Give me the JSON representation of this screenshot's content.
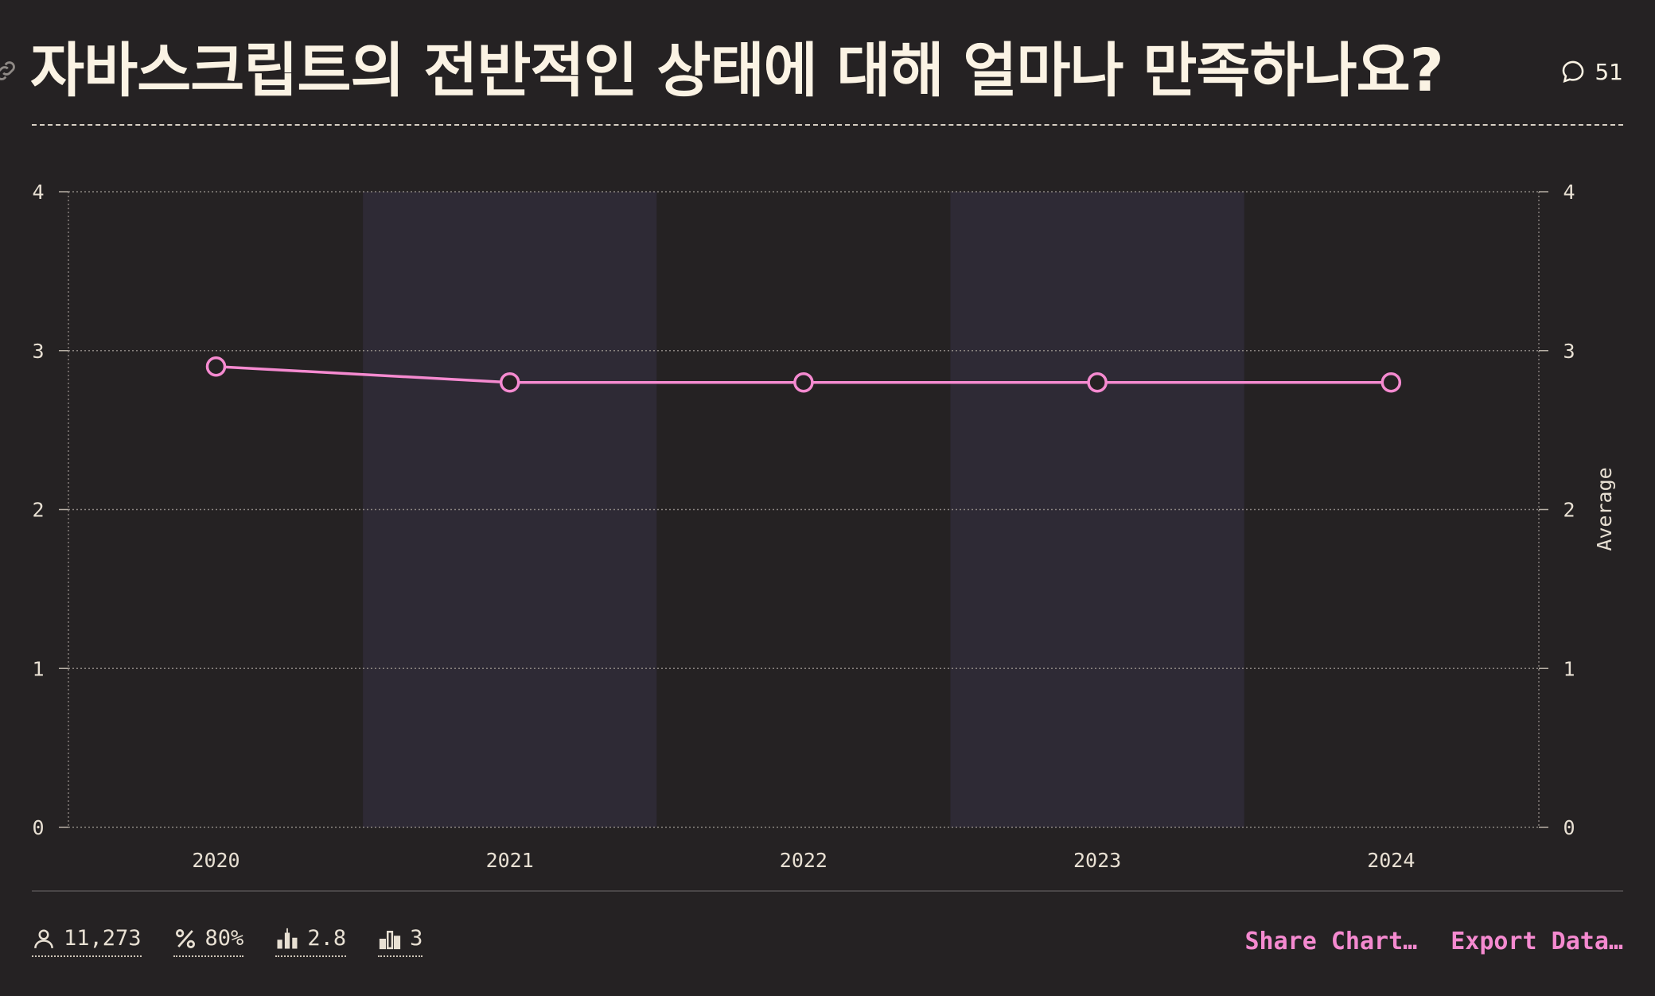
{
  "header": {
    "title": "자바스크립트의 전반적인 상태에 대해 얼마나 만족하나요?",
    "comment_count": "51",
    "comment_icon": "speech-bubble-icon",
    "link_icon": "link-icon"
  },
  "chart_data": {
    "type": "line",
    "title": "자바스크립트의 전반적인 상태에 대해 얼마나 만족하나요?",
    "x": [
      "2020",
      "2021",
      "2022",
      "2023",
      "2024"
    ],
    "series": [
      {
        "values": [
          2.9,
          2.8,
          2.8,
          2.8,
          2.8
        ],
        "color": "#f58ad0"
      }
    ],
    "ylim": [
      0,
      4
    ],
    "yticks": [
      "0",
      "1",
      "2",
      "3",
      "4"
    ],
    "y2label": "Average",
    "grid": true,
    "alternating_band_color": "#2e2a35"
  },
  "stats": [
    {
      "icon": "person-icon",
      "value": "11,273"
    },
    {
      "icon": "percent-icon",
      "value": "80%"
    },
    {
      "icon": "candlestick-icon",
      "value": "2.8"
    },
    {
      "icon": "bar-chart-icon",
      "value": "3"
    }
  ],
  "actions": {
    "share_label": "Share Chart…",
    "export_label": "Export Data…"
  },
  "colors": {
    "background": "#252223",
    "text": "#fbf3e4",
    "accent": "#f58ad0"
  }
}
